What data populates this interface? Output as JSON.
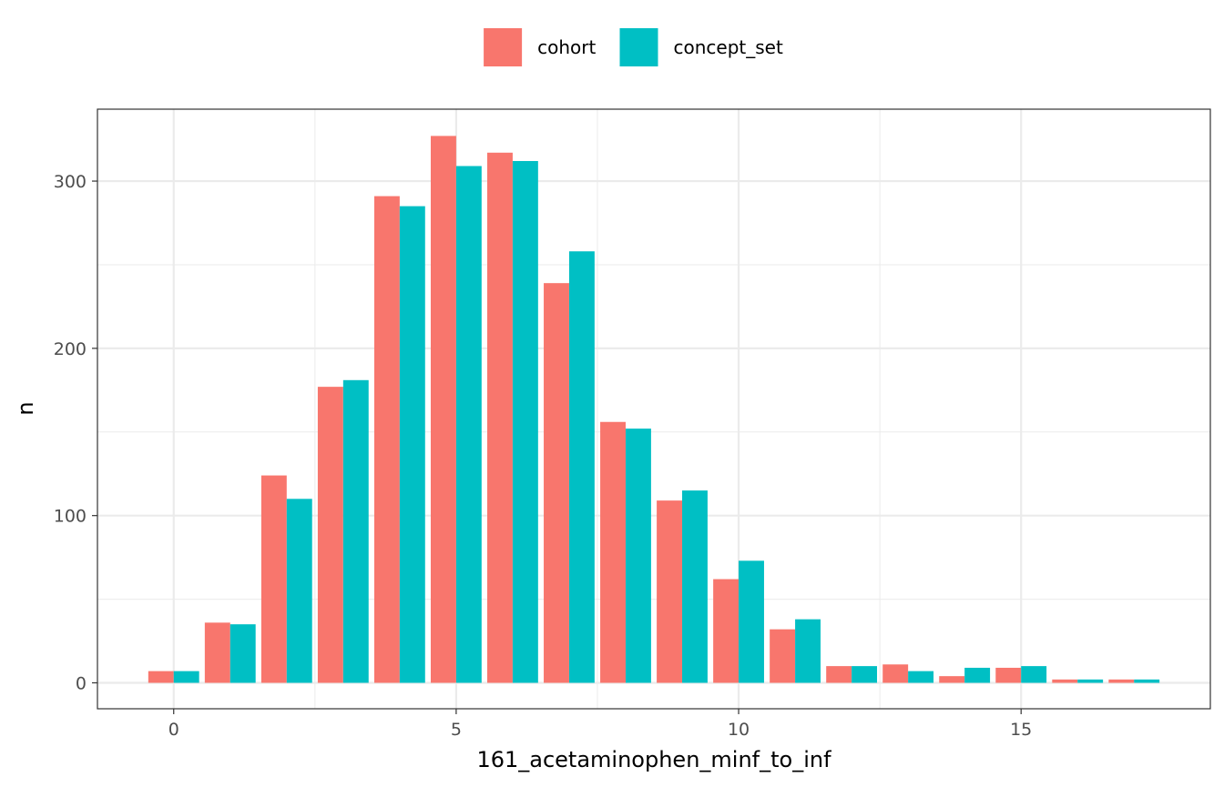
{
  "chart_data": {
    "type": "bar",
    "xlabel": "161_acetaminophen_minf_to_inf",
    "ylabel": "n",
    "x": [
      0,
      1,
      2,
      3,
      4,
      5,
      6,
      7,
      8,
      9,
      10,
      11,
      12,
      13,
      14,
      15,
      16,
      17
    ],
    "series": [
      {
        "name": "cohort",
        "color": "#F8766D",
        "values": [
          7,
          36,
          124,
          177,
          291,
          327,
          317,
          239,
          156,
          109,
          62,
          32,
          10,
          11,
          4,
          9,
          2,
          2
        ]
      },
      {
        "name": "concept_set",
        "color": "#00BFC4",
        "values": [
          7,
          35,
          110,
          181,
          285,
          309,
          312,
          258,
          152,
          115,
          73,
          38,
          10,
          7,
          9,
          10,
          2,
          2
        ]
      }
    ],
    "xlim": [
      -1.35,
      18.35
    ],
    "ylim": [
      -15.5,
      343
    ],
    "x_ticks": [
      0,
      5,
      10,
      15
    ],
    "y_ticks": [
      0,
      100,
      200,
      300
    ],
    "x_tick_labels": [
      "0",
      "5",
      "10",
      "15"
    ],
    "y_tick_labels": [
      "0",
      "100",
      "200",
      "300"
    ],
    "grid": true,
    "legend_position": "top",
    "theme": "bw"
  }
}
